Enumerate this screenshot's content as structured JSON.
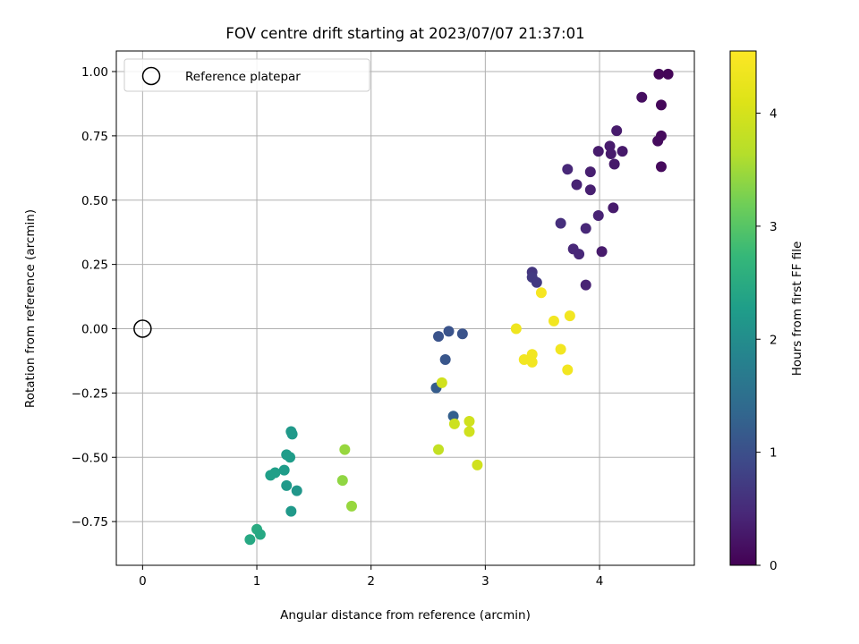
{
  "chart_data": {
    "type": "scatter",
    "title": "FOV centre drift starting at 2023/07/07 21:37:01",
    "xlabel": "Angular distance from reference (arcmin)",
    "ylabel": "Rotation from reference (arcmin)",
    "xlim": [
      -0.23,
      4.83
    ],
    "ylim": [
      -0.92,
      1.08
    ],
    "xticks": [
      0,
      1,
      2,
      3,
      4
    ],
    "xtick_labels": [
      "0",
      "1",
      "2",
      "3",
      "4"
    ],
    "yticks": [
      -0.75,
      -0.5,
      -0.25,
      0.0,
      0.25,
      0.5,
      0.75,
      1.0
    ],
    "ytick_labels": [
      "−0.75",
      "−0.50",
      "−0.25",
      "0.00",
      "0.25",
      "0.50",
      "0.75",
      "1.00"
    ],
    "grid": true,
    "legend": {
      "placement": "top-left",
      "entries": [
        "Reference platepar"
      ]
    },
    "reference_point": {
      "name": "Reference platepar",
      "x": 0,
      "y": 0
    },
    "colorbar": {
      "label": "Hours from first FF file",
      "colormap": "viridis",
      "range": [
        0,
        4.55
      ],
      "ticks": [
        0,
        1,
        2,
        3,
        4
      ],
      "tick_labels": [
        "0",
        "1",
        "2",
        "3",
        "4"
      ]
    },
    "points": [
      {
        "x": 4.6,
        "y": 0.99,
        "c": 0.05
      },
      {
        "x": 4.52,
        "y": 0.99,
        "c": 0.05
      },
      {
        "x": 4.54,
        "y": 0.87,
        "c": 0.08
      },
      {
        "x": 4.37,
        "y": 0.9,
        "c": 0.15
      },
      {
        "x": 4.54,
        "y": 0.75,
        "c": 0.1
      },
      {
        "x": 4.51,
        "y": 0.73,
        "c": 0.12
      },
      {
        "x": 4.54,
        "y": 0.63,
        "c": 0.1
      },
      {
        "x": 4.15,
        "y": 0.77,
        "c": 0.3
      },
      {
        "x": 4.09,
        "y": 0.71,
        "c": 0.3
      },
      {
        "x": 3.99,
        "y": 0.69,
        "c": 0.3
      },
      {
        "x": 4.2,
        "y": 0.69,
        "c": 0.28
      },
      {
        "x": 4.1,
        "y": 0.68,
        "c": 0.3
      },
      {
        "x": 4.13,
        "y": 0.64,
        "c": 0.28
      },
      {
        "x": 3.72,
        "y": 0.62,
        "c": 0.45
      },
      {
        "x": 3.92,
        "y": 0.61,
        "c": 0.35
      },
      {
        "x": 3.8,
        "y": 0.56,
        "c": 0.4
      },
      {
        "x": 3.92,
        "y": 0.54,
        "c": 0.35
      },
      {
        "x": 4.12,
        "y": 0.47,
        "c": 0.3
      },
      {
        "x": 3.99,
        "y": 0.44,
        "c": 0.4
      },
      {
        "x": 3.66,
        "y": 0.41,
        "c": 0.55
      },
      {
        "x": 3.88,
        "y": 0.39,
        "c": 0.45
      },
      {
        "x": 3.77,
        "y": 0.31,
        "c": 0.45
      },
      {
        "x": 4.02,
        "y": 0.3,
        "c": 0.3
      },
      {
        "x": 3.82,
        "y": 0.29,
        "c": 0.45
      },
      {
        "x": 3.41,
        "y": 0.22,
        "c": 0.65
      },
      {
        "x": 3.41,
        "y": 0.2,
        "c": 0.7
      },
      {
        "x": 3.45,
        "y": 0.18,
        "c": 0.7
      },
      {
        "x": 3.88,
        "y": 0.17,
        "c": 0.4
      },
      {
        "x": 2.59,
        "y": -0.03,
        "c": 1.05
      },
      {
        "x": 2.68,
        "y": -0.01,
        "c": 1.05
      },
      {
        "x": 2.8,
        "y": -0.02,
        "c": 1.05
      },
      {
        "x": 2.65,
        "y": -0.12,
        "c": 1.1
      },
      {
        "x": 2.57,
        "y": -0.23,
        "c": 1.2
      },
      {
        "x": 2.72,
        "y": -0.34,
        "c": 1.25
      },
      {
        "x": 3.49,
        "y": 0.14,
        "c": 4.45
      },
      {
        "x": 3.74,
        "y": 0.05,
        "c": 4.4
      },
      {
        "x": 3.6,
        "y": 0.03,
        "c": 4.4
      },
      {
        "x": 3.27,
        "y": 0.0,
        "c": 4.35
      },
      {
        "x": 3.66,
        "y": -0.08,
        "c": 4.4
      },
      {
        "x": 3.41,
        "y": -0.1,
        "c": 4.4
      },
      {
        "x": 3.34,
        "y": -0.12,
        "c": 4.4
      },
      {
        "x": 3.41,
        "y": -0.13,
        "c": 4.4
      },
      {
        "x": 3.72,
        "y": -0.16,
        "c": 4.4
      },
      {
        "x": 2.62,
        "y": -0.21,
        "c": 3.95
      },
      {
        "x": 2.73,
        "y": -0.37,
        "c": 3.9
      },
      {
        "x": 2.86,
        "y": -0.36,
        "c": 3.95
      },
      {
        "x": 2.86,
        "y": -0.4,
        "c": 3.95
      },
      {
        "x": 2.59,
        "y": -0.47,
        "c": 3.8
      },
      {
        "x": 2.93,
        "y": -0.53,
        "c": 3.95
      },
      {
        "x": 1.77,
        "y": -0.47,
        "c": 3.45
      },
      {
        "x": 1.75,
        "y": -0.59,
        "c": 3.4
      },
      {
        "x": 1.83,
        "y": -0.69,
        "c": 3.45
      },
      {
        "x": 1.3,
        "y": -0.4,
        "c": 2.2
      },
      {
        "x": 1.31,
        "y": -0.41,
        "c": 2.2
      },
      {
        "x": 1.26,
        "y": -0.49,
        "c": 2.25
      },
      {
        "x": 1.29,
        "y": -0.5,
        "c": 2.25
      },
      {
        "x": 1.12,
        "y": -0.57,
        "c": 2.3
      },
      {
        "x": 1.16,
        "y": -0.56,
        "c": 2.3
      },
      {
        "x": 1.24,
        "y": -0.55,
        "c": 2.25
      },
      {
        "x": 1.26,
        "y": -0.61,
        "c": 2.2
      },
      {
        "x": 1.35,
        "y": -0.63,
        "c": 2.15
      },
      {
        "x": 1.3,
        "y": -0.71,
        "c": 2.2
      },
      {
        "x": 1.0,
        "y": -0.78,
        "c": 2.5
      },
      {
        "x": 1.03,
        "y": -0.8,
        "c": 2.45
      },
      {
        "x": 0.94,
        "y": -0.82,
        "c": 2.45
      }
    ]
  }
}
